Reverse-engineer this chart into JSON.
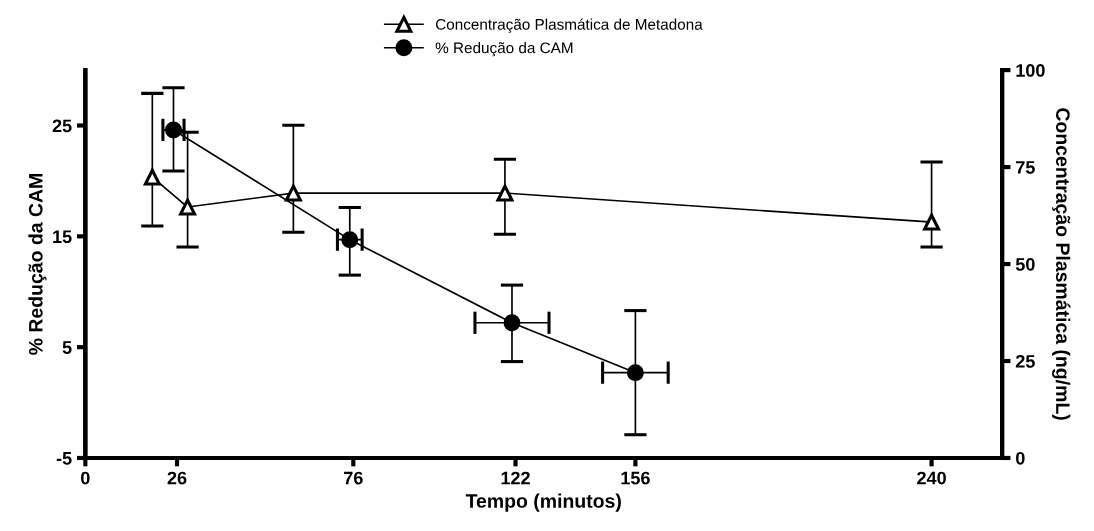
{
  "chart_data": {
    "type": "line",
    "xlabel": "Tempo (minutos)",
    "ylabel": "% Redução da CAM",
    "y2label": "Concentração Plasmática (ng/mL)",
    "xlim": [
      0,
      260
    ],
    "xticks": [
      0,
      26,
      76,
      122,
      156,
      240
    ],
    "ylim": [
      -5,
      30
    ],
    "yticks": [
      -5,
      5,
      15,
      25
    ],
    "y2lim": [
      0,
      100
    ],
    "y2ticks": [
      0,
      25,
      50,
      75,
      100
    ],
    "legend": "top",
    "grid": false,
    "line_style": "solid",
    "series": [
      {
        "name": "Concentração Plasmática de Metadona",
        "color": "#000000",
        "marker": "triangle",
        "axis": "y2",
        "x": [
          19,
          29,
          59,
          119,
          240
        ],
        "values": [
          72.4,
          64.7,
          68.3,
          68.3,
          60.8
        ],
        "errors": [
          [
            59.8,
            94
          ],
          [
            54.4,
            84
          ],
          [
            58.2,
            85.8
          ],
          [
            57.7,
            77
          ],
          [
            54.4,
            76.3
          ]
        ]
      },
      {
        "name": "% Redução da CAM",
        "color": "#000000",
        "marker": "circle",
        "axis": "y",
        "x": [
          25,
          75,
          121,
          156
        ],
        "values": [
          24.6,
          14.7,
          7.2,
          2.7
        ],
        "errors": [
          [
            20.9,
            28.4
          ],
          [
            11.5,
            17.6
          ],
          [
            3.7,
            10.6
          ],
          [
            -2.9,
            8.3
          ]
        ],
        "xerrors": [
          3,
          3.5,
          10.5,
          9.3
        ]
      }
    ]
  }
}
